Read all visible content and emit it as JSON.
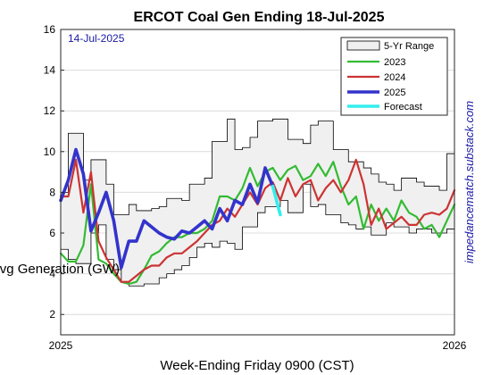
{
  "chart_data": {
    "type": "line",
    "title": "ERCOT Coal Gen Ending 18-Jul-2025",
    "date_label": "14-Jul-2025",
    "xlabel": "Week-Ending Friday 0900 (CST)",
    "ylabel": "Avg Generation (GW)",
    "watermark": "impedancematch.substack.com",
    "xlim": [
      0,
      52
    ],
    "ylim": [
      1,
      16
    ],
    "y_ticks": [
      2,
      4,
      6,
      8,
      10,
      12,
      14,
      16
    ],
    "x_ticks": [
      {
        "value": 0,
        "label": "2025"
      },
      {
        "value": 52,
        "label": "2026"
      }
    ],
    "grid": true,
    "legend_position": "top-right",
    "legend": [
      "5-Yr Range",
      "2023",
      "2024",
      "2025",
      "Forecast"
    ],
    "range": {
      "name": "5-Yr Range",
      "color": "#f0f0f0",
      "x": [
        0,
        1,
        2,
        3,
        4,
        5,
        6,
        7,
        8,
        9,
        10,
        11,
        12,
        13,
        14,
        15,
        16,
        17,
        18,
        19,
        20,
        21,
        22,
        23,
        24,
        25,
        26,
        27,
        28,
        29,
        30,
        31,
        32,
        33,
        34,
        35,
        36,
        37,
        38,
        39,
        40,
        41,
        42,
        43,
        44,
        45,
        46,
        47,
        48,
        49,
        50,
        51,
        52
      ],
      "max": [
        8.0,
        10.9,
        10.9,
        8.6,
        9.6,
        9.6,
        8.4,
        6.9,
        6.9,
        7.4,
        7.1,
        7.1,
        7.2,
        7.3,
        7.7,
        7.7,
        7.6,
        8.4,
        8.4,
        8.7,
        10.5,
        10.5,
        11.6,
        10.1,
        10.2,
        10.7,
        11.5,
        11.5,
        11.6,
        11.6,
        10.6,
        10.6,
        10.4,
        11.3,
        11.5,
        11.5,
        10.1,
        10.1,
        9.5,
        9.5,
        9.2,
        8.9,
        8.5,
        8.4,
        8.1,
        8.7,
        8.7,
        8.5,
        8.3,
        8.3,
        8.1,
        9.9,
        8.6
      ],
      "min": [
        5.2,
        4.7,
        4.5,
        4.5,
        6.0,
        6.4,
        4.7,
        4.2,
        3.6,
        3.4,
        3.4,
        3.5,
        3.5,
        3.8,
        4.0,
        4.2,
        4.4,
        4.8,
        5.3,
        5.5,
        5.3,
        5.6,
        5.5,
        5.2,
        6.3,
        6.3,
        7.0,
        7.3,
        7.3,
        7.6,
        7.0,
        7.0,
        8.4,
        7.3,
        7.4,
        6.9,
        6.9,
        6.5,
        6.4,
        6.2,
        6.3,
        5.9,
        5.9,
        6.5,
        6.3,
        6.3,
        6.0,
        6.2,
        6.2,
        6.0,
        6.0,
        6.2,
        6.3
      ]
    },
    "series": [
      {
        "name": "2023",
        "color": "#33bb33",
        "width": 2.2,
        "x": [
          0,
          1,
          2,
          3,
          4,
          5,
          6,
          7,
          8,
          9,
          10,
          11,
          12,
          13,
          14,
          15,
          16,
          17,
          18,
          19,
          20,
          21,
          22,
          23,
          24,
          25,
          26,
          27,
          28,
          29,
          30,
          31,
          32,
          33,
          34,
          35,
          36,
          37,
          38,
          39,
          40,
          41,
          42,
          43,
          44,
          45,
          46,
          47,
          48,
          49,
          50,
          51,
          52
        ],
        "values": [
          5.0,
          4.6,
          4.6,
          5.4,
          8.4,
          4.7,
          4.5,
          4.0,
          3.6,
          3.5,
          3.6,
          4.2,
          4.9,
          5.1,
          5.5,
          5.8,
          5.8,
          6.0,
          6.0,
          6.2,
          6.6,
          7.8,
          7.8,
          7.6,
          8.2,
          9.2,
          8.3,
          9.0,
          9.2,
          8.6,
          9.1,
          9.3,
          8.6,
          8.8,
          9.4,
          8.8,
          9.5,
          8.3,
          7.4,
          7.8,
          6.2,
          7.4,
          6.6,
          7.2,
          6.6,
          7.6,
          7.0,
          6.8,
          6.2,
          6.4,
          5.8,
          6.6,
          7.4
        ]
      },
      {
        "name": "2024",
        "color": "#cc3333",
        "width": 2.2,
        "x": [
          0,
          1,
          2,
          3,
          4,
          5,
          6,
          7,
          8,
          9,
          10,
          11,
          12,
          13,
          14,
          15,
          16,
          17,
          18,
          19,
          20,
          21,
          22,
          23,
          24,
          25,
          26,
          27,
          28,
          29,
          30,
          31,
          32,
          33,
          34,
          35,
          36,
          37,
          38,
          39,
          40,
          41,
          42,
          43,
          44,
          45,
          46,
          47,
          48,
          49,
          50,
          51,
          52
        ],
        "values": [
          7.8,
          7.8,
          9.6,
          7.0,
          9.0,
          5.6,
          4.8,
          4.2,
          3.6,
          3.6,
          3.9,
          4.2,
          4.4,
          4.4,
          4.8,
          5.0,
          5.0,
          5.3,
          5.6,
          6.0,
          6.4,
          6.6,
          7.2,
          6.8,
          7.4,
          8.0,
          7.4,
          8.2,
          8.5,
          7.6,
          8.7,
          7.8,
          8.4,
          8.6,
          7.6,
          8.2,
          8.6,
          8.0,
          8.6,
          9.6,
          8.4,
          6.4,
          7.2,
          6.2,
          6.5,
          6.8,
          6.4,
          6.4,
          6.9,
          7.0,
          6.9,
          7.2,
          8.1
        ]
      },
      {
        "name": "2025",
        "color": "#3333cc",
        "width": 3.6,
        "x": [
          0,
          1,
          2,
          3,
          4,
          5,
          6,
          7,
          8,
          9,
          10,
          11,
          12,
          13,
          14,
          15,
          16,
          17,
          18,
          19,
          20,
          21,
          22,
          23,
          24,
          25,
          26,
          27,
          28
        ],
        "values": [
          7.6,
          8.6,
          10.1,
          8.9,
          6.1,
          7.0,
          8.0,
          6.6,
          4.3,
          5.6,
          5.6,
          6.6,
          6.3,
          6.0,
          5.8,
          5.7,
          6.1,
          6.0,
          6.3,
          6.6,
          6.2,
          7.2,
          6.6,
          7.6,
          7.4,
          8.4,
          7.5,
          9.2,
          8.3
        ]
      },
      {
        "name": "Forecast",
        "color": "#33eeee",
        "width": 3.6,
        "x": [
          28,
          29
        ],
        "values": [
          8.3,
          6.9
        ]
      }
    ]
  }
}
